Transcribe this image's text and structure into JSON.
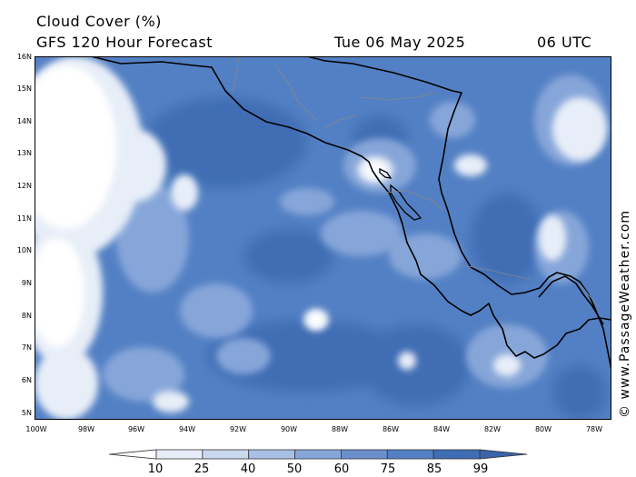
{
  "header": {
    "title": "Cloud Cover (%)",
    "subtitle": "GFS 120 Hour Forecast",
    "date": "Tue 06 May 2025",
    "time": "06 UTC"
  },
  "map": {
    "lat_labels": [
      "16N",
      "15N",
      "14N",
      "13N",
      "12N",
      "11N",
      "10N",
      "9N",
      "8N",
      "7N",
      "6N",
      "5N"
    ],
    "lon_labels": [
      "100W",
      "98W",
      "96W",
      "94W",
      "92W",
      "90W",
      "88W",
      "86W",
      "84W",
      "82W",
      "80W",
      "78W"
    ],
    "colors": {
      "land_outline": "#000000",
      "border": "#888888"
    }
  },
  "legend": {
    "labels": [
      "10",
      "25",
      "40",
      "50",
      "60",
      "75",
      "85",
      "99"
    ],
    "colors": [
      "#ffffff",
      "#e8eef8",
      "#c9d8ef",
      "#a8c0e6",
      "#86a6d9",
      "#6a8fcc",
      "#5380c4",
      "#3f6db4",
      "#3a64ab"
    ]
  },
  "credit": "© www.PassageWeather.com"
}
